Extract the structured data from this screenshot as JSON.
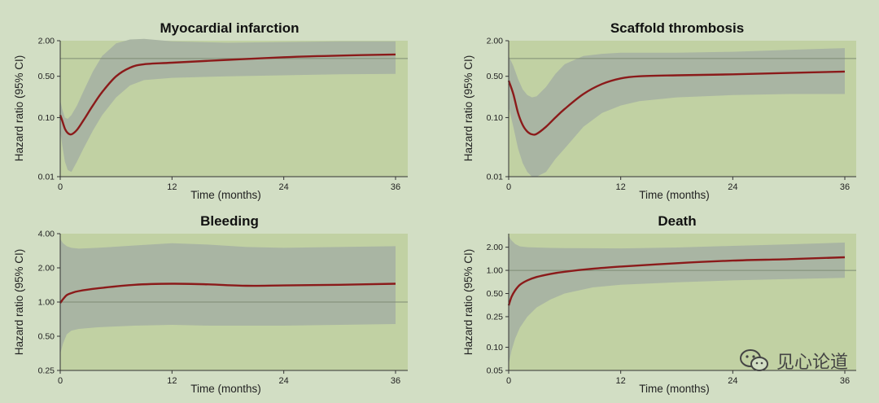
{
  "colors": {
    "page_bg": "#d2dec4",
    "plot_bg": "#c1d1a3",
    "ci_band": "#a9b5a3",
    "curve": "#8b1a1a",
    "reference_line": "#7f8c74",
    "axis": "#333333"
  },
  "watermark": {
    "text": "见心论道",
    "icon": "wechat-icon"
  },
  "chart_data": [
    {
      "type": "line",
      "title": "Myocardial infarction",
      "xlabel": "Time (months)",
      "ylabel": "Hazard ratio (95% CI)",
      "yscale": "log",
      "xlim": [
        0,
        36
      ],
      "ylim": [
        0.01,
        2.0
      ],
      "xticks": [
        0,
        12,
        24,
        36
      ],
      "yticks": [
        0.01,
        0.1,
        0.5,
        2.0
      ],
      "ytick_labels": [
        "0.01",
        "0.10",
        "0.50",
        "2.00"
      ],
      "reference_y": 1.0,
      "series": [
        {
          "x": [
            0,
            0.2,
            0.5,
            0.8,
            1.2,
            1.8,
            2.5,
            3.5,
            4.5,
            6,
            7.5,
            9,
            12,
            18,
            24,
            30,
            36
          ],
          "y": [
            0.11,
            0.09,
            0.065,
            0.055,
            0.052,
            0.062,
            0.09,
            0.16,
            0.27,
            0.5,
            0.7,
            0.8,
            0.85,
            0.95,
            1.05,
            1.12,
            1.17
          ],
          "lower": [
            0.06,
            0.035,
            0.018,
            0.013,
            0.012,
            0.018,
            0.03,
            0.06,
            0.11,
            0.22,
            0.35,
            0.43,
            0.47,
            0.5,
            0.52,
            0.54,
            0.55
          ],
          "upper": [
            0.2,
            0.14,
            0.1,
            0.095,
            0.11,
            0.16,
            0.28,
            0.6,
            1.1,
            1.8,
            2.1,
            2.15,
            1.95,
            1.85,
            1.9,
            1.95,
            1.95
          ]
        }
      ]
    },
    {
      "type": "line",
      "title": "Scaffold thrombosis",
      "xlabel": "Time (months)",
      "ylabel": "Hazard ratio (95% CI)",
      "yscale": "log",
      "xlim": [
        0,
        36
      ],
      "ylim": [
        0.01,
        2.0
      ],
      "xticks": [
        0,
        12,
        24,
        36
      ],
      "yticks": [
        0.01,
        0.1,
        0.5,
        2.0
      ],
      "ytick_labels": [
        "0.01",
        "0.10",
        "0.50",
        "2.00"
      ],
      "reference_y": 1.0,
      "series": [
        {
          "x": [
            0,
            0.5,
            1,
            1.5,
            2,
            2.5,
            3,
            4,
            5,
            6,
            8,
            10,
            12,
            14,
            18,
            24,
            30,
            36
          ],
          "y": [
            0.42,
            0.25,
            0.12,
            0.075,
            0.058,
            0.052,
            0.053,
            0.07,
            0.1,
            0.14,
            0.25,
            0.37,
            0.46,
            0.5,
            0.52,
            0.54,
            0.57,
            0.6
          ],
          "lower": [
            0.15,
            0.07,
            0.03,
            0.017,
            0.012,
            0.01,
            0.01,
            0.012,
            0.02,
            0.03,
            0.07,
            0.12,
            0.16,
            0.19,
            0.22,
            0.24,
            0.25,
            0.25
          ],
          "upper": [
            1.1,
            0.75,
            0.45,
            0.3,
            0.24,
            0.22,
            0.23,
            0.33,
            0.55,
            0.8,
            1.1,
            1.2,
            1.25,
            1.25,
            1.25,
            1.3,
            1.4,
            1.5
          ]
        }
      ]
    },
    {
      "type": "line",
      "title": "Bleeding",
      "xlabel": "Time (months)",
      "ylabel": "Hazard ratio (95% CI)",
      "yscale": "log",
      "xlim": [
        0,
        36
      ],
      "ylim": [
        0.25,
        4.0
      ],
      "xticks": [
        0,
        12,
        24,
        36
      ],
      "yticks": [
        0.25,
        0.5,
        1.0,
        2.0,
        4.0
      ],
      "ytick_labels": [
        "0.25",
        "0.50",
        "1.00",
        "2.00",
        "4.00"
      ],
      "reference_y": 1.0,
      "series": [
        {
          "x": [
            0,
            0.3,
            0.7,
            1.2,
            2,
            4,
            8,
            12,
            16,
            20,
            24,
            30,
            36
          ],
          "y": [
            0.98,
            1.06,
            1.15,
            1.2,
            1.25,
            1.32,
            1.42,
            1.45,
            1.43,
            1.39,
            1.4,
            1.42,
            1.45
          ],
          "lower": [
            0.35,
            0.43,
            0.52,
            0.56,
            0.58,
            0.6,
            0.62,
            0.63,
            0.62,
            0.62,
            0.62,
            0.63,
            0.64
          ],
          "upper": [
            3.6,
            3.3,
            3.1,
            3.0,
            2.95,
            3.0,
            3.15,
            3.3,
            3.2,
            3.05,
            3.0,
            3.05,
            3.1
          ]
        }
      ]
    },
    {
      "type": "line",
      "title": "Death",
      "xlabel": "Time (months)",
      "ylabel": "Hazard ratio (95% CI)",
      "yscale": "log",
      "xlim": [
        0,
        36
      ],
      "ylim": [
        0.05,
        3.0
      ],
      "xticks": [
        0,
        12,
        24,
        36
      ],
      "yticks": [
        0.05,
        0.1,
        0.25,
        0.5,
        1.0,
        2.0
      ],
      "ytick_labels": [
        "0.05",
        "0.10",
        "0.25",
        "0.50",
        "1.00",
        "2.00"
      ],
      "reference_y": 1.0,
      "series": [
        {
          "x": [
            0,
            0.3,
            0.7,
            1.2,
            2,
            3,
            4.5,
            6,
            9,
            12,
            18,
            24,
            30,
            36
          ],
          "y": [
            0.35,
            0.45,
            0.55,
            0.65,
            0.74,
            0.82,
            0.9,
            0.96,
            1.05,
            1.12,
            1.24,
            1.34,
            1.4,
            1.48
          ],
          "lower": [
            0.06,
            0.09,
            0.13,
            0.18,
            0.25,
            0.33,
            0.42,
            0.5,
            0.6,
            0.65,
            0.7,
            0.74,
            0.77,
            0.8
          ],
          "upper": [
            2.8,
            2.45,
            2.2,
            2.05,
            2.0,
            1.98,
            1.96,
            1.95,
            1.94,
            1.93,
            1.98,
            2.08,
            2.18,
            2.3
          ]
        }
      ]
    }
  ]
}
